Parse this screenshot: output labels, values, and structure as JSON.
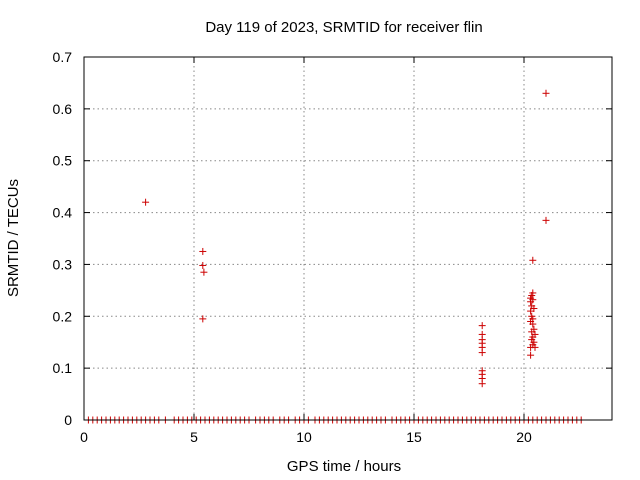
{
  "chart_data": {
    "type": "scatter",
    "title": "Day 119 of 2023, SRMTID for receiver flin",
    "xlabel": "GPS time / hours",
    "ylabel": "SRMTID / TECUs",
    "xlim": [
      0,
      24
    ],
    "ylim": [
      0,
      0.7
    ],
    "xticks": [
      "0",
      "5",
      "10",
      "15",
      "20"
    ],
    "yticks": [
      "0",
      "0.1",
      "0.2",
      "0.3",
      "0.4",
      "0.5",
      "0.6",
      "0.7"
    ],
    "grid": true,
    "marker": "+",
    "color": "#cc0000",
    "series": [
      {
        "points": [
          [
            2.8,
            0.42
          ],
          [
            5.4,
            0.325
          ],
          [
            5.4,
            0.298
          ],
          [
            5.45,
            0.285
          ],
          [
            5.4,
            0.195
          ],
          [
            18.1,
            0.182
          ],
          [
            18.1,
            0.165
          ],
          [
            18.1,
            0.155
          ],
          [
            18.1,
            0.148
          ],
          [
            18.1,
            0.14
          ],
          [
            18.1,
            0.13
          ],
          [
            18.1,
            0.095
          ],
          [
            18.1,
            0.088
          ],
          [
            18.1,
            0.08
          ],
          [
            18.1,
            0.07
          ],
          [
            20.3,
            0.235
          ],
          [
            20.35,
            0.24
          ],
          [
            20.4,
            0.245
          ],
          [
            20.3,
            0.228
          ],
          [
            20.35,
            0.22
          ],
          [
            20.4,
            0.232
          ],
          [
            20.45,
            0.215
          ],
          [
            20.3,
            0.21
          ],
          [
            20.35,
            0.2
          ],
          [
            20.4,
            0.195
          ],
          [
            20.3,
            0.19
          ],
          [
            20.4,
            0.185
          ],
          [
            20.45,
            0.175
          ],
          [
            20.35,
            0.17
          ],
          [
            20.5,
            0.165
          ],
          [
            20.4,
            0.16
          ],
          [
            20.35,
            0.155
          ],
          [
            20.45,
            0.15
          ],
          [
            20.4,
            0.145
          ],
          [
            20.3,
            0.14
          ],
          [
            20.5,
            0.14
          ],
          [
            20.3,
            0.125
          ],
          [
            20.4,
            0.308
          ],
          [
            21.0,
            0.63
          ],
          [
            21.0,
            0.385
          ],
          [
            0.2,
            0
          ],
          [
            0.4,
            0
          ],
          [
            0.6,
            0
          ],
          [
            0.8,
            0
          ],
          [
            1.0,
            0
          ],
          [
            1.2,
            0
          ],
          [
            1.4,
            0
          ],
          [
            1.6,
            0
          ],
          [
            1.8,
            0
          ],
          [
            2.0,
            0
          ],
          [
            2.2,
            0
          ],
          [
            2.4,
            0
          ],
          [
            2.6,
            0
          ],
          [
            2.8,
            0
          ],
          [
            3.0,
            0
          ],
          [
            3.2,
            0
          ],
          [
            3.4,
            0
          ],
          [
            3.7,
            0
          ],
          [
            4.1,
            0
          ],
          [
            4.3,
            0
          ],
          [
            4.5,
            0
          ],
          [
            4.7,
            0
          ],
          [
            4.9,
            0
          ],
          [
            5.1,
            0
          ],
          [
            5.3,
            0
          ],
          [
            5.5,
            0
          ],
          [
            5.7,
            0
          ],
          [
            5.9,
            0
          ],
          [
            6.1,
            0
          ],
          [
            6.3,
            0
          ],
          [
            6.5,
            0
          ],
          [
            6.7,
            0
          ],
          [
            6.9,
            0
          ],
          [
            7.1,
            0
          ],
          [
            7.3,
            0
          ],
          [
            7.5,
            0
          ],
          [
            7.8,
            0
          ],
          [
            8.0,
            0
          ],
          [
            8.2,
            0
          ],
          [
            8.4,
            0
          ],
          [
            8.6,
            0
          ],
          [
            8.9,
            0
          ],
          [
            9.1,
            0
          ],
          [
            9.3,
            0
          ],
          [
            9.6,
            0
          ],
          [
            9.8,
            0
          ],
          [
            10.0,
            0
          ],
          [
            10.2,
            0
          ],
          [
            10.5,
            0
          ],
          [
            10.7,
            0
          ],
          [
            10.9,
            0
          ],
          [
            11.1,
            0
          ],
          [
            11.3,
            0
          ],
          [
            11.5,
            0
          ],
          [
            11.7,
            0
          ],
          [
            11.9,
            0
          ],
          [
            12.1,
            0
          ],
          [
            12.3,
            0
          ],
          [
            12.5,
            0
          ],
          [
            12.7,
            0
          ],
          [
            12.9,
            0
          ],
          [
            13.1,
            0
          ],
          [
            13.3,
            0
          ],
          [
            13.5,
            0
          ],
          [
            13.7,
            0
          ],
          [
            14.0,
            0
          ],
          [
            14.2,
            0
          ],
          [
            14.4,
            0
          ],
          [
            14.6,
            0
          ],
          [
            14.8,
            0
          ],
          [
            15.0,
            0
          ],
          [
            15.2,
            0
          ],
          [
            15.4,
            0
          ],
          [
            15.6,
            0
          ],
          [
            15.8,
            0
          ],
          [
            16.0,
            0
          ],
          [
            16.2,
            0
          ],
          [
            16.4,
            0
          ],
          [
            16.6,
            0
          ],
          [
            16.8,
            0
          ],
          [
            17.0,
            0
          ],
          [
            17.2,
            0
          ],
          [
            17.4,
            0
          ],
          [
            17.6,
            0
          ],
          [
            17.8,
            0
          ],
          [
            18.0,
            0
          ],
          [
            18.2,
            0
          ],
          [
            18.4,
            0
          ],
          [
            18.6,
            0
          ],
          [
            18.8,
            0
          ],
          [
            19.0,
            0
          ],
          [
            19.2,
            0
          ],
          [
            19.4,
            0
          ],
          [
            19.6,
            0
          ],
          [
            19.8,
            0
          ],
          [
            20.0,
            0
          ],
          [
            20.2,
            0
          ],
          [
            20.4,
            0
          ],
          [
            20.6,
            0
          ],
          [
            20.8,
            0
          ],
          [
            21.0,
            0
          ],
          [
            21.2,
            0
          ],
          [
            21.4,
            0
          ],
          [
            21.6,
            0
          ],
          [
            21.8,
            0
          ],
          [
            22.0,
            0
          ],
          [
            22.2,
            0
          ],
          [
            22.4,
            0
          ],
          [
            22.6,
            0
          ]
        ]
      }
    ]
  }
}
